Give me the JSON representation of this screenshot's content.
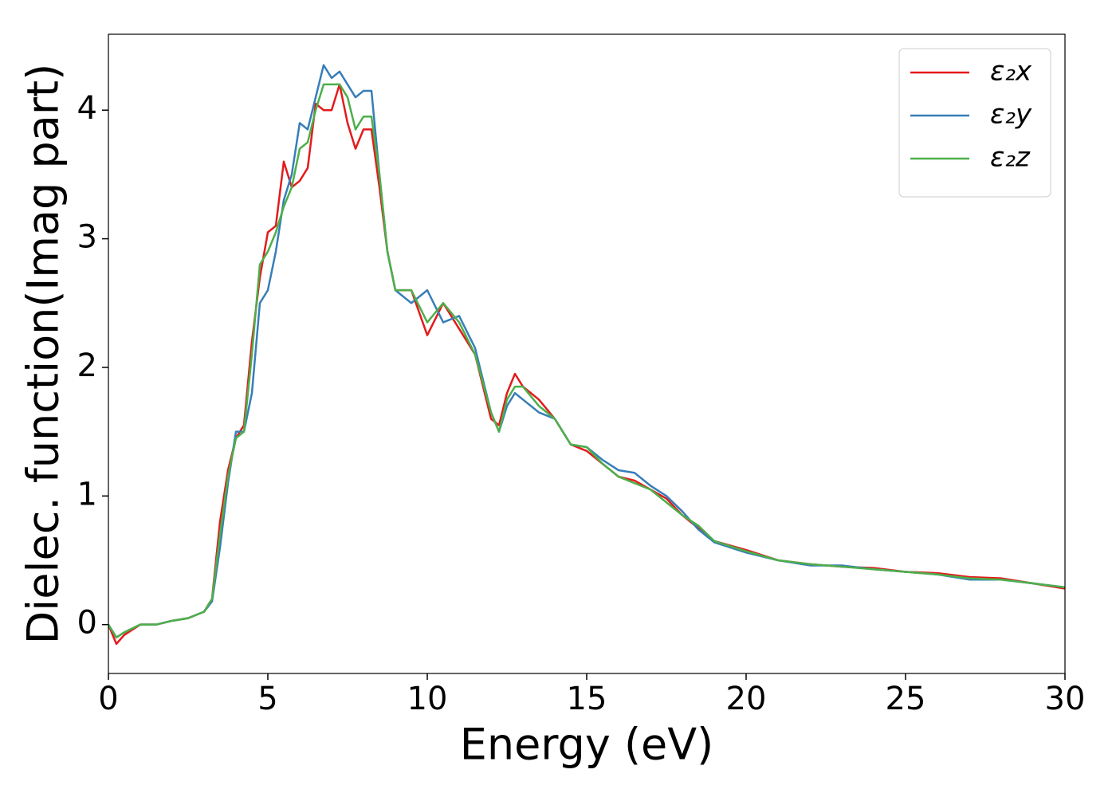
{
  "chart_data": {
    "type": "line",
    "xlabel": "Energy (eV)",
    "ylabel": "Dielec. function(Imag part)",
    "x": [
      0,
      0.25,
      0.5,
      1,
      1.5,
      2,
      2.5,
      3,
      3.25,
      3.5,
      3.75,
      4,
      4.25,
      4.5,
      4.75,
      5,
      5.25,
      5.5,
      5.75,
      6,
      6.25,
      6.5,
      6.75,
      7,
      7.25,
      7.5,
      7.75,
      8,
      8.25,
      8.5,
      8.75,
      9,
      9.5,
      10,
      10.5,
      11,
      11.5,
      12,
      12.25,
      12.5,
      12.75,
      13,
      13.5,
      14,
      14.5,
      15,
      15.5,
      16,
      16.5,
      17,
      17.5,
      18,
      18.5,
      19,
      20,
      21,
      22,
      23,
      24,
      25,
      26,
      27,
      28,
      29,
      30
    ],
    "series": [
      {
        "name": "ε₂x",
        "color": "#e41a1c",
        "values": [
          0,
          -0.15,
          -0.08,
          0,
          0,
          0.03,
          0.05,
          0.1,
          0.2,
          0.8,
          1.2,
          1.45,
          1.55,
          2.2,
          2.7,
          3.05,
          3.1,
          3.6,
          3.4,
          3.45,
          3.55,
          4.05,
          4.0,
          4.0,
          4.2,
          3.9,
          3.7,
          3.85,
          3.85,
          3.4,
          2.9,
          2.6,
          2.6,
          2.25,
          2.5,
          2.3,
          2.1,
          1.6,
          1.55,
          1.8,
          1.95,
          1.85,
          1.75,
          1.6,
          1.4,
          1.35,
          1.25,
          1.15,
          1.12,
          1.05,
          0.98,
          0.85,
          0.75,
          0.65,
          0.58,
          0.5,
          0.47,
          0.45,
          0.44,
          0.41,
          0.4,
          0.37,
          0.36,
          0.32,
          0.28
        ]
      },
      {
        "name": "ε₂y",
        "color": "#377eb8",
        "values": [
          0,
          -0.1,
          -0.06,
          0,
          0,
          0.03,
          0.05,
          0.1,
          0.18,
          0.6,
          1.1,
          1.5,
          1.5,
          1.8,
          2.5,
          2.6,
          2.9,
          3.3,
          3.5,
          3.9,
          3.85,
          4.1,
          4.35,
          4.25,
          4.3,
          4.2,
          4.1,
          4.15,
          4.15,
          3.5,
          2.9,
          2.6,
          2.5,
          2.6,
          2.35,
          2.4,
          2.15,
          1.65,
          1.5,
          1.7,
          1.8,
          1.75,
          1.65,
          1.6,
          1.4,
          1.38,
          1.28,
          1.2,
          1.18,
          1.08,
          1.0,
          0.88,
          0.74,
          0.64,
          0.56,
          0.5,
          0.46,
          0.46,
          0.43,
          0.41,
          0.39,
          0.35,
          0.35,
          0.32,
          0.29
        ]
      },
      {
        "name": "ε₂z",
        "color": "#4daf4a",
        "values": [
          0,
          -0.1,
          -0.06,
          0,
          0,
          0.03,
          0.05,
          0.1,
          0.2,
          0.7,
          1.15,
          1.45,
          1.5,
          2.1,
          2.8,
          2.9,
          3.05,
          3.25,
          3.4,
          3.7,
          3.75,
          4.0,
          4.2,
          4.2,
          4.2,
          4.1,
          3.85,
          3.95,
          3.95,
          3.5,
          2.9,
          2.6,
          2.6,
          2.35,
          2.5,
          2.35,
          2.1,
          1.65,
          1.5,
          1.75,
          1.85,
          1.85,
          1.7,
          1.6,
          1.4,
          1.38,
          1.25,
          1.15,
          1.1,
          1.05,
          0.95,
          0.85,
          0.77,
          0.65,
          0.57,
          0.5,
          0.47,
          0.45,
          0.43,
          0.41,
          0.39,
          0.36,
          0.35,
          0.32,
          0.29
        ]
      }
    ],
    "xlim": [
      0,
      30
    ],
    "xticks": [
      0,
      5,
      10,
      15,
      20,
      25,
      30
    ],
    "ylim": [
      -0.38,
      4.59
    ],
    "yticks": [
      0,
      1,
      2,
      3,
      4
    ],
    "grid": false,
    "legend": "upper right"
  }
}
